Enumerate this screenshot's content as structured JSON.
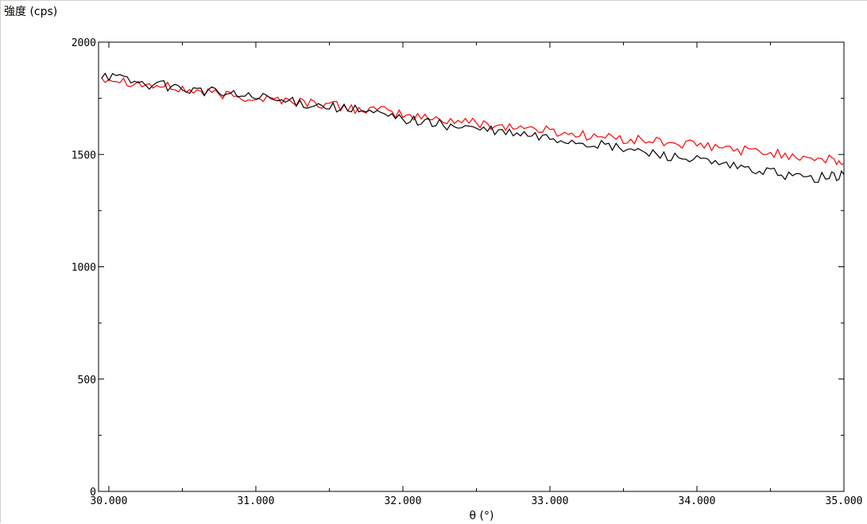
{
  "chart_data": {
    "type": "line",
    "title": "",
    "ylabel": "強度 (cps)",
    "xlabel": "θ (°)",
    "xlim": [
      29.93,
      35.0
    ],
    "ylim": [
      0,
      2000
    ],
    "x_ticks": [
      30.0,
      31.0,
      32.0,
      33.0,
      34.0,
      35.0
    ],
    "x_tick_labels": [
      "30.000",
      "31.000",
      "32.000",
      "33.000",
      "34.000",
      "35.000"
    ],
    "y_ticks": [
      0,
      500,
      1000,
      1500,
      2000
    ],
    "y_tick_labels": [
      "0",
      "500",
      "1000",
      "1500",
      "2000"
    ],
    "grid": false,
    "series": [
      {
        "color": "#ff0000",
        "x": [
          29.95,
          30.1,
          30.25,
          30.4,
          30.55,
          30.7,
          30.85,
          31.0,
          31.15,
          31.3,
          31.45,
          31.6,
          31.75,
          31.9,
          32.05,
          32.2,
          32.35,
          32.5,
          32.65,
          32.8,
          32.95,
          33.1,
          33.25,
          33.4,
          33.55,
          33.7,
          33.85,
          34.0,
          34.15,
          34.3,
          34.45,
          34.6,
          34.75,
          34.9,
          35.0
        ],
        "y": [
          1845,
          1830,
          1810,
          1800,
          1785,
          1770,
          1760,
          1750,
          1745,
          1735,
          1725,
          1710,
          1700,
          1690,
          1670,
          1660,
          1650,
          1640,
          1630,
          1620,
          1610,
          1595,
          1585,
          1575,
          1565,
          1560,
          1550,
          1540,
          1530,
          1520,
          1510,
          1500,
          1490,
          1475,
          1460
        ]
      },
      {
        "color": "#000000",
        "x": [
          29.95,
          30.1,
          30.25,
          30.4,
          30.55,
          30.7,
          30.85,
          31.0,
          31.15,
          31.3,
          31.45,
          31.6,
          31.75,
          31.9,
          32.05,
          32.2,
          32.35,
          32.5,
          32.65,
          32.8,
          32.95,
          33.1,
          33.25,
          33.4,
          33.55,
          33.7,
          33.85,
          34.0,
          34.15,
          34.3,
          34.45,
          34.6,
          34.75,
          34.9,
          35.0
        ],
        "y": [
          1860,
          1835,
          1815,
          1805,
          1790,
          1780,
          1765,
          1755,
          1740,
          1730,
          1720,
          1705,
          1690,
          1670,
          1655,
          1640,
          1625,
          1615,
          1600,
          1590,
          1575,
          1565,
          1550,
          1535,
          1520,
          1505,
          1490,
          1475,
          1455,
          1440,
          1425,
          1410,
          1395,
          1400,
          1410
        ]
      }
    ]
  }
}
